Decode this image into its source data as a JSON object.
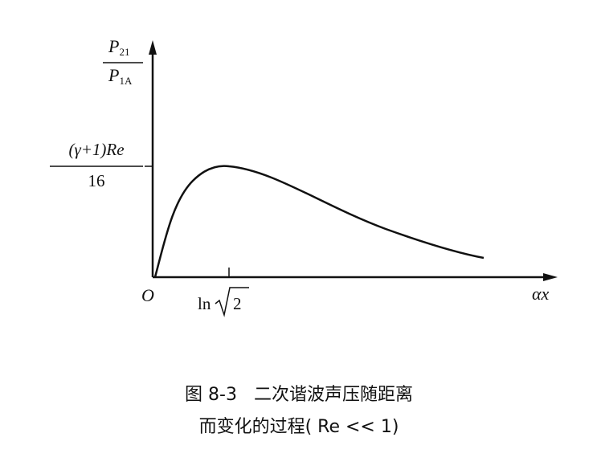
{
  "y_label": {
    "numerator": {
      "text": "P",
      "subscript": "21"
    },
    "denominator": {
      "text": "P",
      "subscript": "1A"
    }
  },
  "peak_label": {
    "numerator": "(γ+1)Re",
    "denominator": "16"
  },
  "origin_label": "O",
  "x_tick_label": {
    "prefix": "ln",
    "radicand": "2"
  },
  "x_label": "αx",
  "caption": {
    "lines": [
      "图 8-3   二次谐波声压随距离",
      "而变化的过程( Re << 1)"
    ]
  }
}
